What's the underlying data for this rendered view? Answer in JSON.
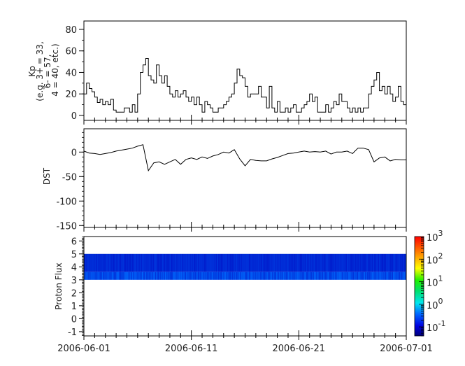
{
  "chart_data": [
    {
      "type": "line",
      "panel": "kp",
      "ylabel_lines": [
        "Kp",
        "(e.g. 3+ = 33,",
        "6- = 57,",
        "4 = 40, etc.)"
      ],
      "ylim": [
        -4.6,
        87.8
      ],
      "yticks": [
        "0",
        "20",
        "40",
        "60",
        "80"
      ],
      "step": true,
      "color": "#000000",
      "values_per_day": 4,
      "daily": [
        {
          "date": "2006-06-01",
          "values": [
            20,
            30,
            25,
            22
          ]
        },
        {
          "date": "2006-06-02",
          "values": [
            17,
            12,
            15,
            10
          ]
        },
        {
          "date": "2006-06-03",
          "values": [
            13,
            10,
            15,
            5
          ]
        },
        {
          "date": "2006-06-04",
          "values": [
            3,
            3,
            3,
            7
          ]
        },
        {
          "date": "2006-06-05",
          "values": [
            7,
            3,
            10,
            3
          ]
        },
        {
          "date": "2006-06-06",
          "values": [
            20,
            40,
            47,
            53
          ]
        },
        {
          "date": "2006-06-07",
          "values": [
            37,
            33,
            30,
            47
          ]
        },
        {
          "date": "2006-06-08",
          "values": [
            37,
            30,
            37,
            27
          ]
        },
        {
          "date": "2006-06-09",
          "values": [
            20,
            17,
            23,
            17
          ]
        },
        {
          "date": "2006-06-10",
          "values": [
            20,
            23,
            17,
            13
          ]
        },
        {
          "date": "2006-06-11",
          "values": [
            17,
            10,
            17,
            10
          ]
        },
        {
          "date": "2006-06-12",
          "values": [
            3,
            13,
            10,
            7
          ]
        },
        {
          "date": "2006-06-13",
          "values": [
            3,
            3,
            7,
            7
          ]
        },
        {
          "date": "2006-06-14",
          "values": [
            10,
            13,
            17,
            20
          ]
        },
        {
          "date": "2006-06-15",
          "values": [
            30,
            43,
            37,
            35
          ]
        },
        {
          "date": "2006-06-16",
          "values": [
            27,
            17,
            20,
            20
          ]
        },
        {
          "date": "2006-06-17",
          "values": [
            20,
            27,
            17,
            17
          ]
        },
        {
          "date": "2006-06-18",
          "values": [
            7,
            27,
            7,
            3
          ]
        },
        {
          "date": "2006-06-19",
          "values": [
            13,
            3,
            3,
            7
          ]
        },
        {
          "date": "2006-06-20",
          "values": [
            3,
            7,
            10,
            3
          ]
        },
        {
          "date": "2006-06-21",
          "values": [
            3,
            7,
            10,
            13
          ]
        },
        {
          "date": "2006-06-22",
          "values": [
            20,
            13,
            17,
            3
          ]
        },
        {
          "date": "2006-06-23",
          "values": [
            3,
            3,
            10,
            3
          ]
        },
        {
          "date": "2006-06-24",
          "values": [
            7,
            13,
            10,
            20
          ]
        },
        {
          "date": "2006-06-25",
          "values": [
            13,
            13,
            7,
            3
          ]
        },
        {
          "date": "2006-06-26",
          "values": [
            7,
            3,
            7,
            3
          ]
        },
        {
          "date": "2006-06-27",
          "values": [
            7,
            7,
            20,
            27
          ]
        },
        {
          "date": "2006-06-28",
          "values": [
            33,
            40,
            23,
            27
          ]
        },
        {
          "date": "2006-06-29",
          "values": [
            20,
            27,
            20,
            13
          ]
        },
        {
          "date": "2006-06-30",
          "values": [
            17,
            27,
            13,
            10
          ]
        }
      ]
    },
    {
      "type": "line",
      "panel": "dst",
      "ylabel": "DST",
      "ylim": [
        -153.9,
        47.6
      ],
      "yticks": [
        "0",
        "-50",
        "-100",
        "-150"
      ],
      "color": "#000000",
      "values_per_day": 2,
      "daily": [
        {
          "date": "2006-06-01",
          "values": [
            2,
            -2
          ]
        },
        {
          "date": "2006-06-02",
          "values": [
            -3,
            -5
          ]
        },
        {
          "date": "2006-06-03",
          "values": [
            -3,
            -1
          ]
        },
        {
          "date": "2006-06-04",
          "values": [
            2,
            4
          ]
        },
        {
          "date": "2006-06-05",
          "values": [
            6,
            8
          ]
        },
        {
          "date": "2006-06-06",
          "values": [
            12,
            15
          ]
        },
        {
          "date": "2006-06-07",
          "values": [
            -38,
            -22
          ]
        },
        {
          "date": "2006-06-08",
          "values": [
            -20,
            -25
          ]
        },
        {
          "date": "2006-06-09",
          "values": [
            -20,
            -15
          ]
        },
        {
          "date": "2006-06-10",
          "values": [
            -25,
            -15
          ]
        },
        {
          "date": "2006-06-11",
          "values": [
            -12,
            -15
          ]
        },
        {
          "date": "2006-06-12",
          "values": [
            -10,
            -13
          ]
        },
        {
          "date": "2006-06-13",
          "values": [
            -8,
            -5
          ]
        },
        {
          "date": "2006-06-14",
          "values": [
            0,
            -2
          ]
        },
        {
          "date": "2006-06-15",
          "values": [
            5,
            -14
          ]
        },
        {
          "date": "2006-06-16",
          "values": [
            -28,
            -15
          ]
        },
        {
          "date": "2006-06-17",
          "values": [
            -17,
            -18
          ]
        },
        {
          "date": "2006-06-18",
          "values": [
            -18,
            -14
          ]
        },
        {
          "date": "2006-06-19",
          "values": [
            -11,
            -7
          ]
        },
        {
          "date": "2006-06-20",
          "values": [
            -3,
            -2
          ]
        },
        {
          "date": "2006-06-21",
          "values": [
            0,
            2
          ]
        },
        {
          "date": "2006-06-22",
          "values": [
            0,
            1
          ]
        },
        {
          "date": "2006-06-23",
          "values": [
            0,
            2
          ]
        },
        {
          "date": "2006-06-24",
          "values": [
            -4,
            0
          ]
        },
        {
          "date": "2006-06-25",
          "values": [
            0,
            2
          ]
        },
        {
          "date": "2006-06-26",
          "values": [
            -3,
            8
          ]
        },
        {
          "date": "2006-06-27",
          "values": [
            8,
            5
          ]
        },
        {
          "date": "2006-06-28",
          "values": [
            -20,
            -12
          ]
        },
        {
          "date": "2006-06-29",
          "values": [
            -10,
            -18
          ]
        },
        {
          "date": "2006-06-30",
          "values": [
            -15,
            -16
          ]
        }
      ],
      "end_value": -16
    },
    {
      "type": "heatmap",
      "panel": "proton",
      "ylabel": "Proton Flux",
      "ylim": [
        -1.33,
        6.34
      ],
      "yticks": [
        "6",
        "5",
        "4",
        "3",
        "2",
        "1",
        "0",
        "-1"
      ],
      "filled_y_range": [
        3,
        5
      ],
      "value_range_log10": {
        "upper_channels": [
          -1.3,
          -1.0
        ],
        "lower_channels": [
          -1.0,
          -0.6
        ]
      },
      "colorbar": {
        "scale": "log",
        "range_log10": [
          -1.4,
          3
        ],
        "tick_labels": [
          {
            "base": "10",
            "exp": "3"
          },
          {
            "base": "10",
            "exp": "2"
          },
          {
            "base": "10",
            "exp": "1"
          },
          {
            "base": "10",
            "exp": "0"
          },
          {
            "base": "10",
            "exp": "-1"
          }
        ],
        "colormap": "rainbow (dark blue → blue → cyan → green → yellow → orange → red)"
      }
    }
  ],
  "xaxis": {
    "range": [
      "2006-06-01",
      "2006-07-01"
    ],
    "tick_labels": [
      "2006-06-01",
      "2006-06-11",
      "2006-06-21",
      "2006-07-01"
    ]
  }
}
